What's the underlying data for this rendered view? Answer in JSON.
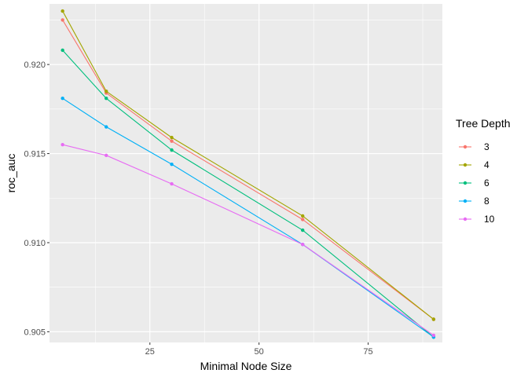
{
  "chart_data": {
    "type": "line",
    "xlabel": "Minimal Node Size",
    "ylabel": "roc_auc",
    "xlim": [
      2,
      92
    ],
    "ylim": [
      0.9044,
      0.9234
    ],
    "x_ticks": [
      25,
      50,
      75
    ],
    "x_tick_labels": [
      "25",
      "50",
      "75"
    ],
    "y_ticks": [
      0.905,
      0.91,
      0.915,
      0.92
    ],
    "y_tick_labels": [
      "0.905",
      "0.910",
      "0.915",
      "0.920"
    ],
    "grid": true,
    "legend": {
      "title": "Tree Depth",
      "placement": "right"
    },
    "x": [
      5,
      15,
      30,
      60,
      90
    ],
    "series": [
      {
        "name": "3",
        "color": "#F8766D",
        "values": [
          0.9225,
          0.9184,
          0.9157,
          0.9113,
          0.9057
        ]
      },
      {
        "name": "4",
        "color": "#A3A500",
        "values": [
          0.923,
          0.9185,
          0.9159,
          0.9115,
          0.9057
        ]
      },
      {
        "name": "6",
        "color": "#00BF7D",
        "values": [
          0.9208,
          0.9181,
          0.9152,
          0.9107,
          0.9047
        ]
      },
      {
        "name": "8",
        "color": "#00B0F6",
        "values": [
          0.9181,
          0.9165,
          0.9144,
          0.9099,
          0.9047
        ]
      },
      {
        "name": "10",
        "color": "#E76BF3",
        "values": [
          0.9155,
          0.9149,
          0.9133,
          0.9099,
          0.9048
        ]
      }
    ]
  }
}
